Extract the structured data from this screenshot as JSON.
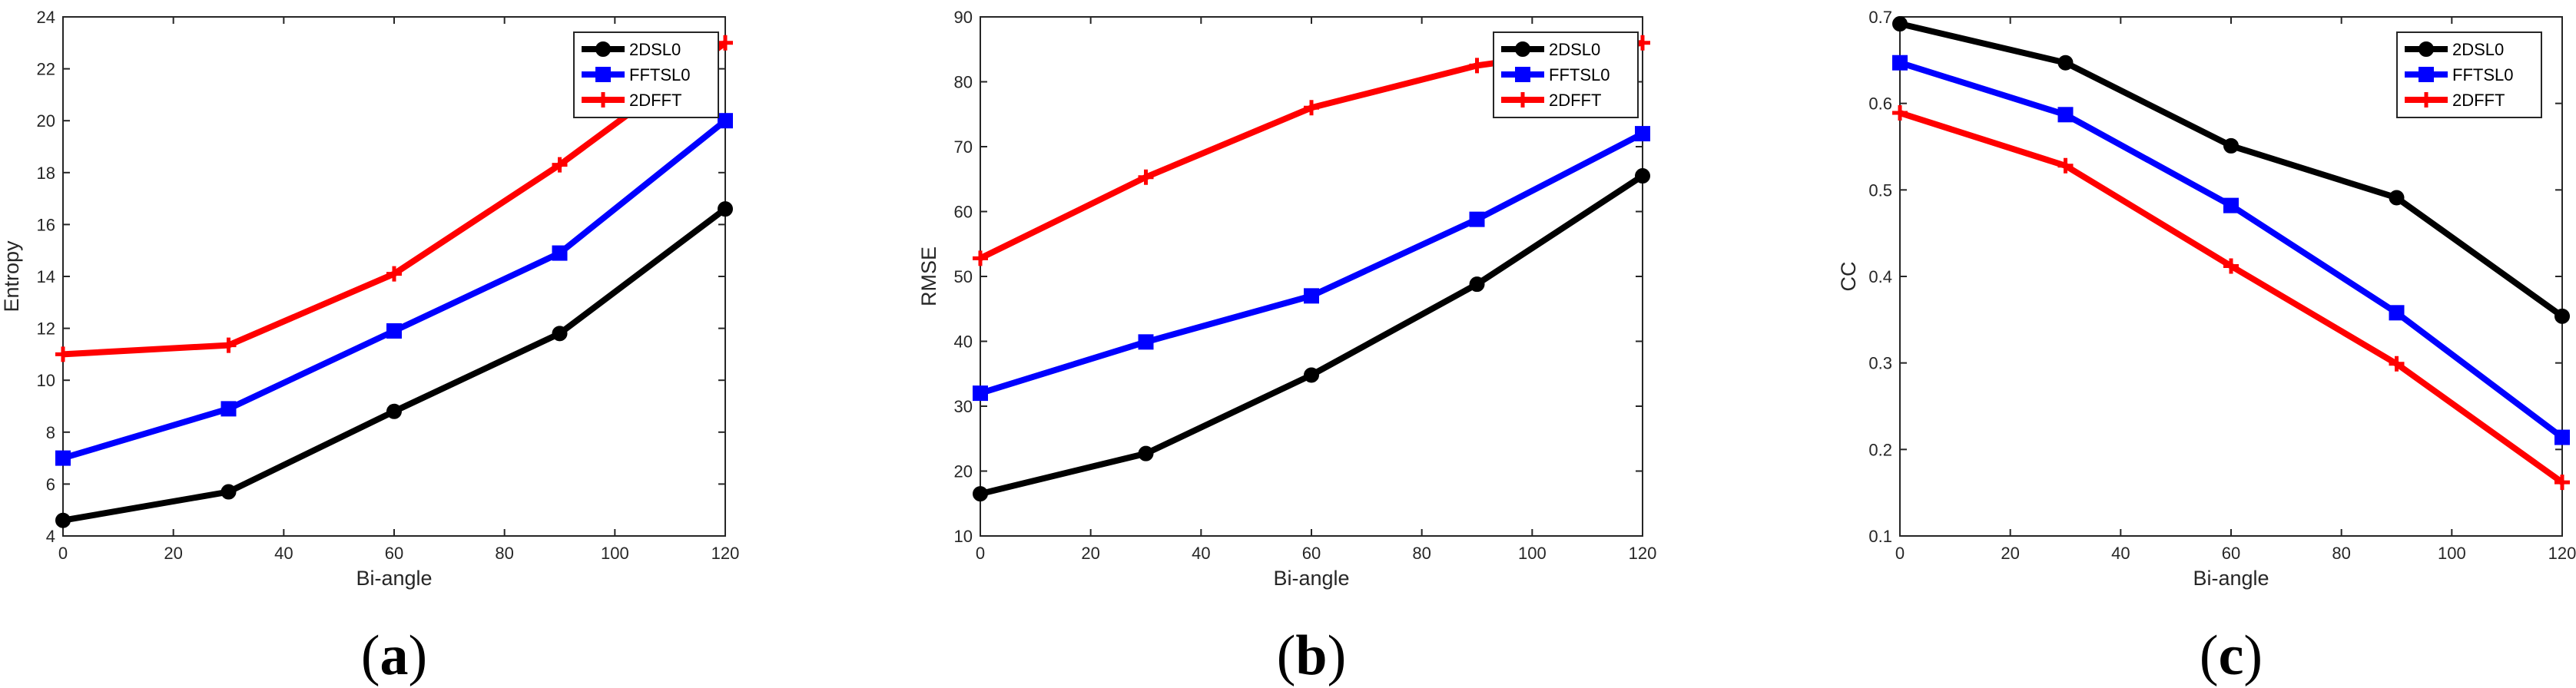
{
  "colors": {
    "2DSL0": "#000000",
    "FFTSL0": "#0000ff",
    "2DFFT": "#ff0000",
    "axis": "#262626"
  },
  "chart_data": [
    {
      "type": "line",
      "panel_label": "a",
      "title": "",
      "xlabel": "Bi-angle",
      "ylabel": "Entropy",
      "xlim": [
        0,
        120
      ],
      "ylim": [
        4,
        24
      ],
      "xticks": [
        0,
        20,
        40,
        60,
        80,
        100,
        120
      ],
      "yticks": [
        4,
        6,
        8,
        10,
        12,
        14,
        16,
        18,
        20,
        22,
        24
      ],
      "legend_position": "top-right",
      "x": [
        0,
        30,
        60,
        90,
        120
      ],
      "series": [
        {
          "name": "2DSL0",
          "marker": "circle",
          "values": [
            4.6,
            5.7,
            8.8,
            11.8,
            16.6
          ]
        },
        {
          "name": "FFTSL0",
          "marker": "square",
          "values": [
            7.0,
            8.9,
            11.9,
            14.9,
            20.0
          ]
        },
        {
          "name": "2DFFT",
          "marker": "plus",
          "values": [
            11.0,
            11.35,
            14.1,
            18.3,
            23.0
          ]
        }
      ]
    },
    {
      "type": "line",
      "panel_label": "b",
      "title": "",
      "xlabel": "Bi-angle",
      "ylabel": "RMSE",
      "xlim": [
        0,
        120
      ],
      "ylim": [
        10,
        90
      ],
      "xticks": [
        0,
        20,
        40,
        60,
        80,
        100,
        120
      ],
      "yticks": [
        10,
        20,
        30,
        40,
        50,
        60,
        70,
        80,
        90
      ],
      "legend_position": "top-right",
      "x": [
        0,
        30,
        60,
        90,
        120
      ],
      "series": [
        {
          "name": "2DSL0",
          "marker": "circle",
          "values": [
            16.5,
            22.7,
            34.8,
            48.8,
            65.5
          ]
        },
        {
          "name": "FFTSL0",
          "marker": "square",
          "values": [
            32.0,
            39.9,
            47.0,
            58.8,
            72.0
          ]
        },
        {
          "name": "2DFFT",
          "marker": "plus",
          "values": [
            52.8,
            65.3,
            76.0,
            82.5,
            86.0
          ]
        }
      ]
    },
    {
      "type": "line",
      "panel_label": "c",
      "title": "",
      "xlabel": "Bi-angle",
      "ylabel": "CC",
      "xlim": [
        0,
        120
      ],
      "ylim": [
        0.1,
        0.7
      ],
      "xticks": [
        0,
        20,
        40,
        60,
        80,
        100,
        120
      ],
      "yticks": [
        0.1,
        0.2,
        0.3,
        0.4,
        0.5,
        0.6,
        0.7
      ],
      "legend_position": "top-right",
      "x": [
        0,
        30,
        60,
        90,
        120
      ],
      "series": [
        {
          "name": "2DSL0",
          "marker": "circle",
          "values": [
            0.692,
            0.647,
            0.551,
            0.491,
            0.354
          ]
        },
        {
          "name": "FFTSL0",
          "marker": "square",
          "values": [
            0.647,
            0.587,
            0.482,
            0.358,
            0.214
          ]
        },
        {
          "name": "2DFFT",
          "marker": "plus",
          "values": [
            0.589,
            0.528,
            0.412,
            0.299,
            0.162
          ]
        }
      ]
    }
  ]
}
